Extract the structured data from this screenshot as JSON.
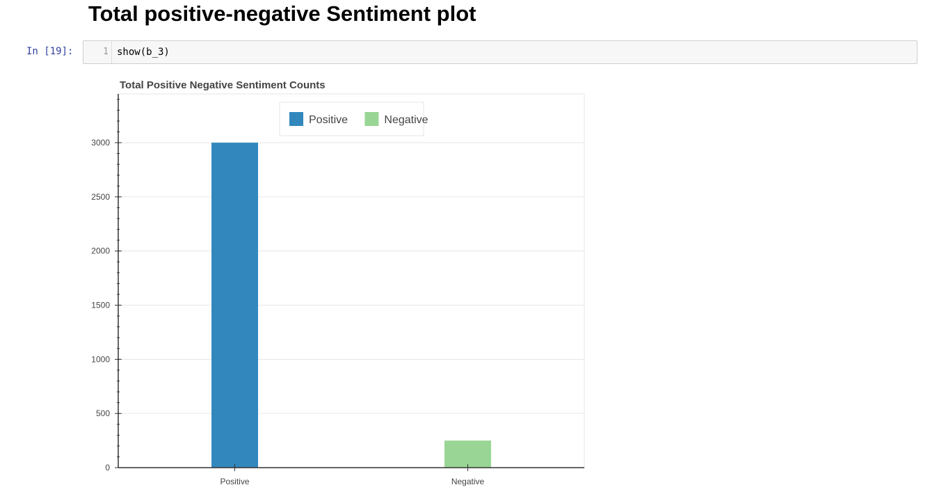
{
  "notebook": {
    "heading": "Total positive-negative Sentiment plot",
    "cell": {
      "prompt": "In [19]:",
      "line_number": "1",
      "code": "show(b_3)"
    }
  },
  "chart_data": {
    "type": "bar",
    "title": "Total Positive Negative Sentiment Counts",
    "categories": [
      "Positive",
      "Negative"
    ],
    "values": [
      3000,
      250
    ],
    "colors": [
      "#3288bd",
      "#99d594"
    ],
    "xlabel": "",
    "ylabel": "",
    "ylim": [
      0,
      3450
    ],
    "yticks": [
      0,
      500,
      1000,
      1500,
      2000,
      2500,
      3000
    ],
    "yticks_labels": [
      "0",
      "500",
      "1000",
      "1500",
      "2000",
      "2500",
      "3000"
    ],
    "grid": true,
    "legend": {
      "placement": "top-center",
      "entries": [
        {
          "label": "Positive",
          "color": "#3288bd"
        },
        {
          "label": "Negative",
          "color": "#99d594"
        }
      ]
    }
  }
}
